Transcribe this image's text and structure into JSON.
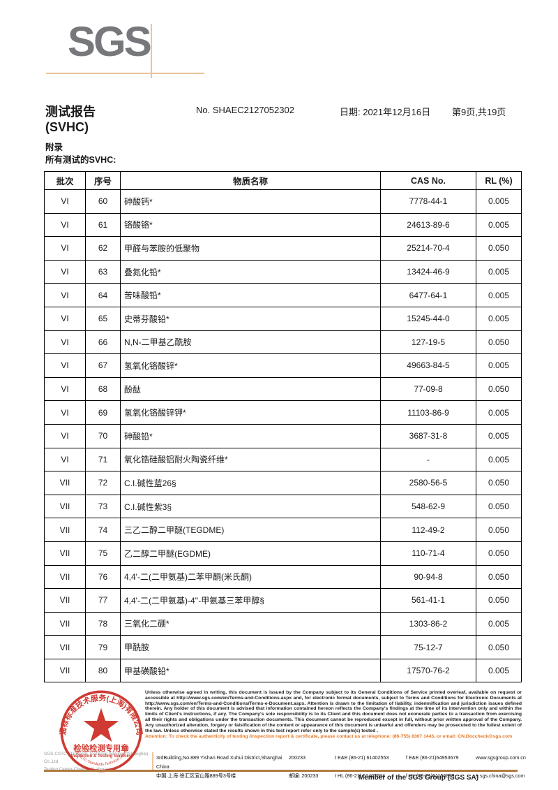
{
  "colors": {
    "ink": "#1a1a1a",
    "logo-gray": "#77787b",
    "cross-tan": "#eac49c",
    "stamp-red": "#cc2a21",
    "attention-orange": "#e87722",
    "rule-tan": "#b07c42"
  },
  "header": {
    "logo": "SGS",
    "title_line1": "测试报告",
    "title_line2": "(SVHC)",
    "report_no": "No. SHAEC2127052302",
    "date": "日期: 2021年12月16日",
    "page": "第9页,共19页",
    "appendix": "附录",
    "subtitle": "所有测试的SVHC:"
  },
  "table": {
    "headers": [
      "批次",
      "序号",
      "物质名称",
      "CAS No.",
      "RL (%)"
    ],
    "rows": [
      {
        "batch": "VI",
        "no": "60",
        "name": "砷酸钙*",
        "cas": "7778-44-1",
        "rl": "0.005"
      },
      {
        "batch": "VI",
        "no": "61",
        "name": "铬酸铬*",
        "cas": "24613-89-6",
        "rl": "0.005"
      },
      {
        "batch": "VI",
        "no": "62",
        "name": "甲醛与苯胺的低聚物",
        "cas": "25214-70-4",
        "rl": "0.050"
      },
      {
        "batch": "VI",
        "no": "63",
        "name": "叠氮化铅*",
        "cas": "13424-46-9",
        "rl": "0.005"
      },
      {
        "batch": "VI",
        "no": "64",
        "name": "苦味酸铅*",
        "cas": "6477-64-1",
        "rl": "0.005"
      },
      {
        "batch": "VI",
        "no": "65",
        "name": "史蒂芬酸铅*",
        "cas": "15245-44-0",
        "rl": "0.005"
      },
      {
        "batch": "VI",
        "no": "66",
        "name": "N,N-二甲基乙酰胺",
        "cas": "127-19-5",
        "rl": "0.050"
      },
      {
        "batch": "VI",
        "no": "67",
        "name": "氢氧化铬酸锌*",
        "cas": "49663-84-5",
        "rl": "0.005"
      },
      {
        "batch": "VI",
        "no": "68",
        "name": "酚酞",
        "cas": "77-09-8",
        "rl": "0.050"
      },
      {
        "batch": "VI",
        "no": "69",
        "name": "氢氧化铬酸锌钾*",
        "cas": "11103-86-9",
        "rl": "0.005"
      },
      {
        "batch": "VI",
        "no": "70",
        "name": "砷酸铅*",
        "cas": "3687-31-8",
        "rl": "0.005"
      },
      {
        "batch": "VI",
        "no": "71",
        "name": "氧化锆硅酸铝耐火陶瓷纤维*",
        "cas": "-",
        "rl": "0.005"
      },
      {
        "batch": "VII",
        "no": "72",
        "name": "C.I.碱性蓝26§",
        "cas": "2580-56-5",
        "rl": "0.050"
      },
      {
        "batch": "VII",
        "no": "73",
        "name": "C.I.碱性紫3§",
        "cas": "548-62-9",
        "rl": "0.050"
      },
      {
        "batch": "VII",
        "no": "74",
        "name": "三乙二醇二甲醚(TEGDME)",
        "cas": "112-49-2",
        "rl": "0.050"
      },
      {
        "batch": "VII",
        "no": "75",
        "name": "乙二醇二甲醚(EGDME)",
        "cas": "110-71-4",
        "rl": "0.050"
      },
      {
        "batch": "VII",
        "no": "76",
        "name": "4,4'-二(二甲氨基)二苯甲酮(米氏酮)",
        "cas": "90-94-8",
        "rl": "0.050"
      },
      {
        "batch": "VII",
        "no": "77",
        "name": "4,4'-二(二甲氨基)-4''-甲氨基三苯甲醇§",
        "cas": "561-41-1",
        "rl": "0.050"
      },
      {
        "batch": "VII",
        "no": "78",
        "name": "三氧化二硼*",
        "cas": "1303-86-2",
        "rl": "0.005"
      },
      {
        "batch": "VII",
        "no": "79",
        "name": "甲酰胺",
        "cas": "75-12-7",
        "rl": "0.050"
      },
      {
        "batch": "VII",
        "no": "80",
        "name": "甲基磺酸铅*",
        "cas": "17570-76-2",
        "rl": "0.005"
      }
    ]
  },
  "footer": {
    "disclaimer": "Unless otherwise agreed in writing, this document is issued by the Company subject to its General Conditions of Service printed overleaf, available on request or accessible at http://www.sgs.com/en/Terms-and-Conditions.aspx and, for electronic format documents, subject to Terms and Conditions for Electronic Documents at http://www.sgs.com/en/Terms-and-Conditions/Terms-e-Document.aspx. Attention is drawn to the limitation of liability, indemnification and jurisdiction issues defined therein. Any holder of this document is advised that information contained hereon reflects the Company's findings at the time of its intervention only and within the limits of Client's instructions, if any. The Company's sole responsibility is to its Client and this document does not exonerate parties to a transaction from exercising all their rights and obligations under the transaction documents. This document cannot be reproduced except in full, without prior written approval of the Company. Any unauthorized alteration, forgery or falsification of the content or appearance of this document is unlawful and offenders may be prosecuted to the fullest extent of the law. Unless otherwise stated the results shown in this test report refer only to the sample(s) tested .",
    "attention": "Attention: To check the authenticity of testing /inspection report & certificate, please contact us at telephone: (86-755) 8307 1443, or email: CN.Doccheck@sgs.com",
    "company_en": "SGS-CSTC Standards Technical Services (Shanghai) Co.,Ltd.",
    "company_dept": "Testing Center-Chemical Laboratory.",
    "address_rows": [
      [
        "3rdBuilding,No.889 Yishan Road Xuhui District,Shanghai China",
        "200233",
        "t E&E (86-21) 61402553",
        "f E&E (86-21)64953679",
        "www.sgsgroup.com.cn"
      ],
      [
        "中国·上海·徐汇区宜山路889号3号楼",
        "邮编: 200233",
        "t HL (86-21) 61402594",
        "f HL (86-21)61156899",
        "e  sgs.china@sgs.com"
      ]
    ],
    "member": "Member of the SGS Group (SGS SA)",
    "stamp": {
      "arc_top": "通标标准技术服务(上海)有限公司",
      "line1": "检验检测专用章",
      "line2": "Inspection & Testing Services",
      "arc_bottom": "SGS-CSTC Standards Technical Services"
    }
  }
}
